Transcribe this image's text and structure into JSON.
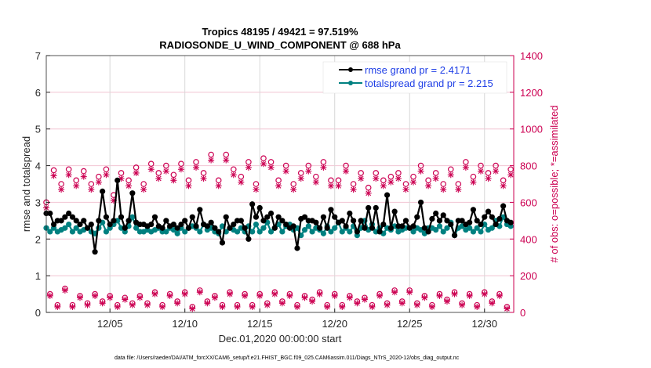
{
  "chart_data": {
    "type": "line",
    "title": [
      "Tropics 48195 / 49421 = 97.519%",
      "RADIOSONDE_U_WIND_COMPONENT @ 688 hPa"
    ],
    "xlabel": "Dec.01,2020 00:00:00 start",
    "ylabel": "rmse and totalspread",
    "ylabel_right": "# of obs: o=possible; *=assimilated",
    "footer": "data file: /Users/raeder/DAI/ATM_forcXX/CAM6_setup/f.e21.FHIST_BGC.f09_025.CAM6assim.011/Diags_NTrS_2020-12/obs_diag_output.nc",
    "xlim": [
      0.75,
      31.95
    ],
    "x_start": 0.75,
    "x_step": 0.25,
    "xticks": [
      {
        "v": 5,
        "label": "12/05"
      },
      {
        "v": 10,
        "label": "12/10"
      },
      {
        "v": 15,
        "label": "12/15"
      },
      {
        "v": 20,
        "label": "12/20"
      },
      {
        "v": 25,
        "label": "12/25"
      },
      {
        "v": 30,
        "label": "12/30"
      }
    ],
    "ylim": [
      0,
      7
    ],
    "yticks": [
      "0",
      "1",
      "2",
      "3",
      "4",
      "5",
      "6",
      "7"
    ],
    "ylim_right": [
      0,
      1400
    ],
    "yticks_right": [
      "0",
      "200",
      "400",
      "600",
      "800",
      "1000",
      "1200",
      "1400"
    ],
    "legend_position": "top-right",
    "series": [
      {
        "name": "rmse grand pr = 2.4171",
        "color": "#000000",
        "values": [
          2.7,
          2.7,
          2.4,
          2.5,
          2.5,
          2.6,
          2.7,
          2.6,
          2.5,
          2.4,
          2.5,
          2.3,
          2.4,
          1.65,
          2.5,
          3.3,
          2.6,
          2.4,
          2.5,
          3.6,
          2.6,
          2.3,
          2.5,
          3.25,
          2.45,
          2.4,
          2.4,
          2.35,
          2.4,
          2.6,
          2.35,
          2.3,
          2.5,
          2.35,
          2.4,
          2.3,
          2.4,
          2.5,
          2.3,
          2.6,
          2.35,
          2.8,
          2.4,
          2.35,
          2.45,
          2.3,
          2.2,
          1.9,
          2.6,
          2.3,
          2.4,
          2.5,
          2.5,
          2.3,
          2.0,
          2.95,
          2.6,
          2.85,
          2.5,
          2.6,
          2.7,
          2.3,
          2.6,
          2.5,
          2.4,
          2.3,
          2.35,
          1.75,
          2.55,
          2.6,
          2.5,
          2.5,
          2.45,
          2.3,
          2.6,
          2.3,
          2.8,
          2.6,
          2.45,
          2.5,
          2.35,
          2.7,
          2.5,
          2.2,
          2.5,
          2.3,
          2.85,
          2.3,
          2.85,
          2.2,
          2.4,
          3.2,
          2.3,
          2.75,
          2.35,
          2.35,
          2.5,
          2.3,
          2.35,
          2.6,
          3.0,
          2.3,
          2.2,
          2.55,
          2.7,
          2.5,
          2.65,
          2.5,
          2.4,
          2.1,
          2.5,
          2.5,
          2.4,
          2.45,
          2.8,
          2.5,
          2.4,
          2.6,
          2.75,
          2.6,
          2.4,
          2.55,
          2.9,
          2.5,
          2.45
        ]
      },
      {
        "name": "totalspread grand pr = 2.215",
        "color": "#008080",
        "values": [
          2.3,
          2.2,
          2.3,
          2.2,
          2.25,
          2.3,
          2.4,
          2.2,
          2.3,
          2.2,
          2.25,
          2.3,
          2.2,
          2.15,
          2.3,
          2.45,
          2.2,
          2.3,
          2.4,
          2.5,
          2.3,
          2.2,
          2.35,
          2.6,
          2.3,
          2.2,
          2.2,
          2.25,
          2.2,
          2.25,
          2.3,
          2.2,
          2.2,
          2.3,
          2.25,
          2.15,
          2.3,
          2.2,
          2.3,
          2.35,
          2.3,
          2.2,
          2.4,
          2.25,
          2.3,
          2.2,
          2.15,
          2.35,
          2.2,
          2.3,
          2.25,
          2.2,
          2.3,
          2.2,
          2.35,
          2.2,
          2.4,
          2.2,
          2.3,
          2.45,
          2.2,
          2.3,
          2.4,
          2.2,
          2.35,
          2.4,
          2.25,
          2.3,
          2.1,
          2.25,
          2.35,
          2.2,
          2.3,
          2.25,
          2.15,
          2.35,
          2.2,
          2.3,
          2.45,
          2.2,
          2.3,
          2.2,
          2.35,
          2.1,
          2.3,
          2.5,
          2.25,
          2.4,
          2.2,
          2.3,
          2.15,
          2.3,
          2.25,
          2.35,
          2.2,
          2.25,
          2.3,
          2.3,
          2.2,
          2.3,
          2.25,
          2.15,
          2.3,
          2.3,
          2.25,
          2.35,
          2.2,
          2.3,
          2.45,
          2.1,
          2.3,
          2.35,
          2.25,
          2.3,
          2.2,
          2.3,
          2.2,
          2.4,
          2.25,
          2.3,
          2.5,
          2.35,
          2.6,
          2.4,
          2.35
        ]
      }
    ],
    "obs_color": "#cc0052",
    "obs_possible": [
      600,
      100,
      775,
      40,
      700,
      130,
      780,
      40,
      720,
      90,
      770,
      50,
      700,
      100,
      740,
      60,
      780,
      90,
      640,
      40,
      760,
      80,
      720,
      50,
      790,
      90,
      700,
      50,
      810,
      110,
      760,
      40,
      800,
      100,
      750,
      60,
      810,
      110,
      720,
      30,
      820,
      120,
      760,
      60,
      860,
      90,
      720,
      40,
      860,
      110,
      780,
      40,
      740,
      100,
      820,
      40,
      700,
      100,
      840,
      50,
      820,
      110,
      720,
      60,
      800,
      100,
      700,
      40,
      760,
      90,
      800,
      70,
      740,
      110,
      820,
      40,
      720,
      100,
      720,
      40,
      800,
      90,
      700,
      60,
      760,
      80,
      680,
      40,
      760,
      100,
      720,
      50,
      740,
      120,
      760,
      60,
      700,
      120,
      740,
      50,
      800,
      90,
      720,
      40,
      760,
      100,
      700,
      70,
      780,
      110,
      700,
      50,
      820,
      100,
      740,
      40,
      800,
      110,
      760,
      60,
      800,
      100,
      720,
      30,
      780
    ],
    "obs_assimilated": [
      570,
      90,
      745,
      30,
      670,
      120,
      750,
      30,
      690,
      80,
      740,
      40,
      670,
      90,
      710,
      50,
      750,
      80,
      610,
      30,
      730,
      70,
      690,
      40,
      760,
      80,
      670,
      40,
      780,
      100,
      730,
      30,
      770,
      90,
      720,
      50,
      780,
      100,
      690,
      20,
      790,
      110,
      730,
      50,
      830,
      80,
      690,
      30,
      830,
      100,
      750,
      30,
      710,
      90,
      790,
      30,
      670,
      90,
      810,
      40,
      790,
      100,
      690,
      50,
      770,
      90,
      670,
      30,
      730,
      80,
      770,
      60,
      710,
      100,
      790,
      30,
      690,
      90,
      690,
      30,
      770,
      80,
      670,
      50,
      730,
      70,
      650,
      30,
      730,
      90,
      690,
      40,
      710,
      110,
      730,
      50,
      670,
      110,
      710,
      40,
      770,
      80,
      690,
      30,
      730,
      90,
      670,
      60,
      750,
      100,
      670,
      40,
      790,
      90,
      710,
      30,
      770,
      100,
      730,
      50,
      770,
      90,
      690,
      20,
      750
    ]
  }
}
